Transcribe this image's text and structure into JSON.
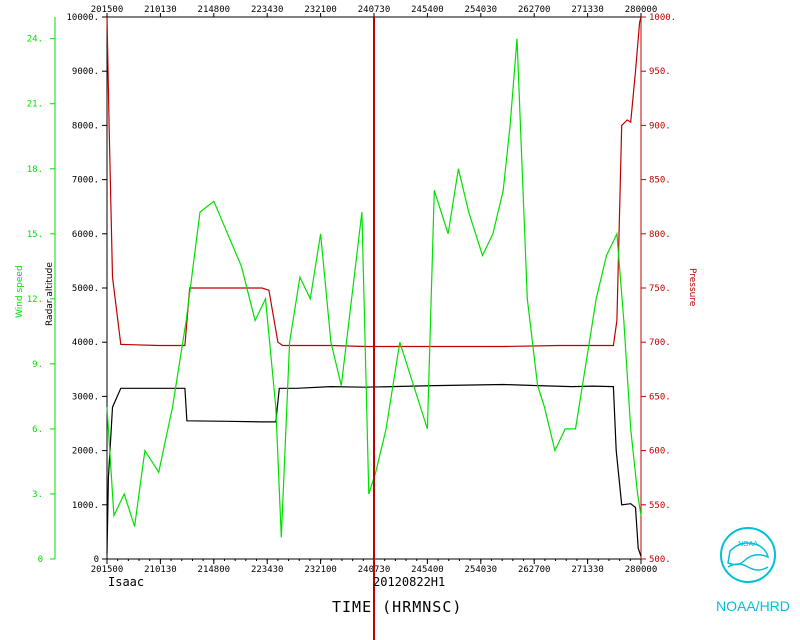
{
  "chart_data": {
    "type": "line",
    "storm": "Isaac",
    "flight_id": "20120822H1",
    "xlabel": "TIME (HRMNSC)",
    "x_ticks_bottom": [
      "201500",
      "210130",
      "214800",
      "223430",
      "232100",
      "240730",
      "245400",
      "254030",
      "262700",
      "271330",
      "280000"
    ],
    "x_ticks_top": [
      "201500",
      "210130",
      "214800",
      "223430",
      "232100",
      "240730",
      "245400",
      "254030",
      "262700",
      "271330",
      "280000"
    ],
    "xlim_hours": [
      20.25,
      28.0
    ],
    "marker_time_hours": 24.125,
    "axes": {
      "wind_speed": {
        "label": "Wind speed",
        "color": "#00e000",
        "range": [
          0,
          25
        ],
        "ticks": [
          "0",
          "3.",
          "6.",
          "9.",
          "12.",
          "15.",
          "18.",
          "21.",
          "24."
        ]
      },
      "radar_altitude": {
        "label": "Radar altitude",
        "color": "#000000",
        "range": [
          0,
          10000
        ],
        "ticks": [
          "0",
          "1000.",
          "2000.",
          "3000.",
          "4000.",
          "5000.",
          "6000.",
          "7000.",
          "8000.",
          "9000.",
          "10000."
        ]
      },
      "pressure": {
        "label": "Pressure",
        "color": "#c00000",
        "range": [
          500,
          1000
        ],
        "ticks": [
          "500.",
          "550.",
          "600.",
          "650.",
          "700.",
          "750.",
          "800.",
          "850.",
          "900.",
          "950.",
          "1000."
        ]
      }
    },
    "series": [
      {
        "name": "Pressure",
        "color": "#c00000",
        "axis": "pressure",
        "x": [
          20.25,
          20.28,
          20.33,
          20.45,
          21.0,
          21.15,
          21.38,
          21.45,
          22.5,
          22.6,
          22.73,
          22.8,
          23.5,
          24.0,
          24.2,
          25.0,
          26.0,
          26.8,
          27.3,
          27.6,
          27.65,
          27.72,
          27.8,
          27.85,
          27.92,
          27.98,
          28.0
        ],
        "y": [
          1000,
          900,
          760,
          698,
          697,
          697,
          697,
          750,
          750,
          748,
          700,
          697,
          697,
          696,
          696,
          696,
          696,
          697,
          697,
          697,
          720,
          900,
          905,
          903,
          950,
          995,
          1000
        ]
      },
      {
        "name": "Radar altitude",
        "color": "#000000",
        "axis": "radar_altitude",
        "x": [
          20.25,
          20.27,
          20.33,
          20.45,
          21.0,
          21.15,
          21.38,
          21.41,
          22.0,
          22.5,
          22.7,
          22.75,
          23.0,
          23.5,
          24.0,
          25.0,
          26.0,
          26.5,
          27.0,
          27.3,
          27.6,
          27.64,
          27.72,
          27.85,
          27.92,
          27.96,
          28.0
        ],
        "y": [
          100,
          1500,
          2800,
          3150,
          3150,
          3150,
          3150,
          2550,
          2540,
          2530,
          2530,
          3150,
          3150,
          3180,
          3170,
          3200,
          3220,
          3200,
          3180,
          3190,
          3180,
          2000,
          1000,
          1020,
          950,
          200,
          50
        ]
      },
      {
        "name": "Wind speed",
        "color": "#00e000",
        "axis": "wind_speed",
        "x": [
          20.25,
          20.35,
          20.5,
          20.65,
          20.8,
          21.0,
          21.2,
          21.4,
          21.6,
          21.8,
          22.0,
          22.2,
          22.4,
          22.55,
          22.7,
          22.78,
          22.9,
          23.05,
          23.2,
          23.35,
          23.5,
          23.65,
          23.8,
          23.95,
          24.05,
          24.15,
          24.3,
          24.5,
          24.7,
          24.9,
          25.0,
          25.1,
          25.2,
          25.35,
          25.5,
          25.7,
          25.85,
          26.0,
          26.1,
          26.2,
          26.35,
          26.5,
          26.6,
          26.75,
          26.9,
          27.05,
          27.2,
          27.35,
          27.5,
          27.65,
          27.75,
          27.85,
          27.95,
          28.0
        ],
        "y": [
          7,
          2,
          3,
          1.5,
          5,
          4,
          7,
          11,
          16,
          16.5,
          15,
          13.5,
          11,
          12,
          7,
          1,
          10,
          13,
          12,
          15,
          10,
          8,
          12,
          16,
          3,
          4,
          6,
          10,
          8,
          6,
          17,
          16,
          15,
          18,
          16,
          14,
          15,
          17,
          20,
          24,
          12,
          8,
          7,
          5,
          6,
          6,
          9,
          12,
          14,
          15,
          11,
          6,
          3,
          2
        ]
      }
    ]
  },
  "brand": {
    "logo_text": "NOAA",
    "label": "NOAA/HRD"
  }
}
